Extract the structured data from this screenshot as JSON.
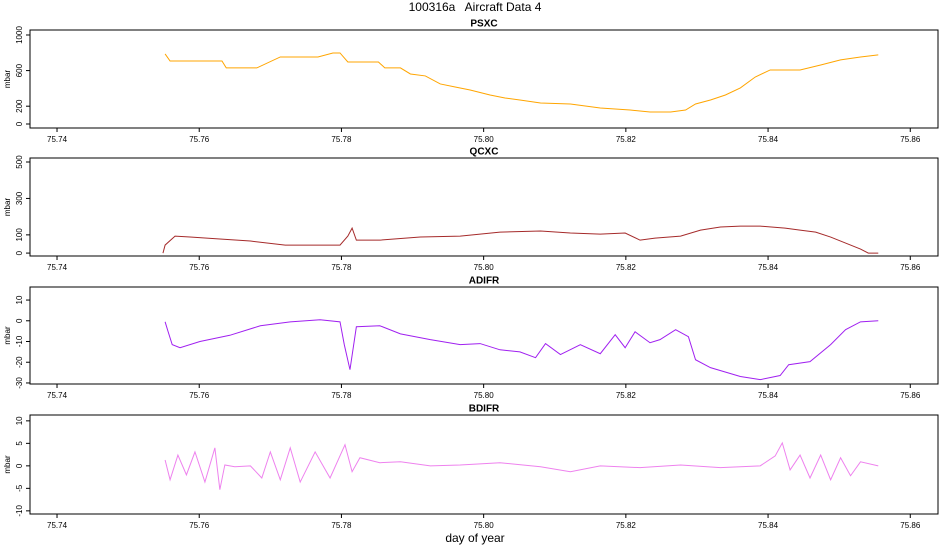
{
  "title": "100316a   Aircraft Data 4",
  "xlabel": "day of year",
  "chart_data": [
    {
      "type": "line",
      "title": "PSXC",
      "ylabel": "mbar",
      "color": "#FFA500",
      "xlim": [
        75.7362,
        75.8639
      ],
      "xticks": [
        75.74,
        75.76,
        75.78,
        {
          "value": 75.8,
          "label": "75.80"
        },
        75.82,
        75.84,
        75.86
      ],
      "ylim": [
        -45,
        1056
      ],
      "yticks": [
        0,
        200,
        600,
        1000
      ],
      "x": [
        75.7552,
        75.7559,
        75.7632,
        75.7638,
        75.7681,
        75.7714,
        75.7767,
        75.7788,
        75.7798,
        75.7809,
        75.7852,
        75.7861,
        75.7883,
        75.7897,
        75.7918,
        75.7939,
        75.796,
        75.7981,
        75.8009,
        75.803,
        75.8051,
        75.808,
        75.8122,
        75.8164,
        75.8206,
        75.8234,
        75.8263,
        75.8284,
        75.8298,
        75.8319,
        75.834,
        75.8361,
        75.8382,
        75.8403,
        75.8445,
        75.8474,
        75.8502,
        75.853,
        75.8555
      ],
      "values": [
        787,
        708,
        708,
        630,
        630,
        753,
        753,
        798,
        798,
        697,
        697,
        630,
        630,
        562,
        540,
        450,
        416,
        382,
        326,
        292,
        270,
        236,
        225,
        180,
        157,
        135,
        135,
        157,
        225,
        270,
        326,
        405,
        528,
        607,
        607,
        663,
        720,
        753,
        776
      ]
    },
    {
      "type": "line",
      "title": "QCXC",
      "ylabel": "mbar",
      "color": "#A52A2A",
      "xlim": [
        75.7362,
        75.8639
      ],
      "xticks": [
        75.74,
        75.76,
        75.78,
        {
          "value": 75.8,
          "label": "75.80"
        },
        75.82,
        75.84,
        75.86
      ],
      "ylim": [
        -16,
        522
      ],
      "yticks": [
        0,
        100,
        300,
        500
      ],
      "x": [
        75.7549,
        75.7552,
        75.7566,
        75.7587,
        75.7629,
        75.7672,
        75.7721,
        75.7798,
        75.7809,
        75.7815,
        75.7821,
        75.7854,
        75.7911,
        75.7967,
        75.7995,
        75.8023,
        75.808,
        75.8122,
        75.8164,
        75.8199,
        75.822,
        75.8241,
        75.8277,
        75.8305,
        75.8333,
        75.8361,
        75.8389,
        75.8424,
        75.8445,
        75.8467,
        75.8488,
        75.8509,
        75.853,
        75.8541,
        75.8555
      ],
      "values": [
        0,
        44,
        93,
        88,
        77,
        66,
        44,
        44,
        93,
        137,
        71,
        71,
        88,
        93,
        104,
        115,
        121,
        110,
        104,
        110,
        71,
        82,
        93,
        126,
        143,
        148,
        148,
        137,
        126,
        115,
        88,
        55,
        22,
        0,
        0
      ]
    },
    {
      "type": "line",
      "title": "ADIFR",
      "ylabel": "mbar",
      "color": "#A020F0",
      "xlim": [
        75.7362,
        75.8639
      ],
      "xticks": [
        75.74,
        75.76,
        75.78,
        {
          "value": 75.8,
          "label": "75.80"
        },
        75.82,
        75.84,
        75.86
      ],
      "ylim": [
        -30.5,
        16.3
      ],
      "yticks": [
        -30,
        -20,
        -10,
        0,
        10
      ],
      "x": [
        75.7552,
        75.7556,
        75.7562,
        75.7573,
        75.7601,
        75.7643,
        75.7686,
        75.7728,
        75.777,
        75.7798,
        75.7804,
        75.7812,
        75.7821,
        75.7854,
        75.7883,
        75.7925,
        75.7967,
        75.7995,
        75.8023,
        75.8051,
        75.8073,
        75.8087,
        75.8108,
        75.8136,
        75.8164,
        75.8185,
        75.8199,
        75.8213,
        75.8234,
        75.8248,
        75.827,
        75.8288,
        75.8298,
        75.8319,
        75.8361,
        75.8389,
        75.8417,
        75.8429,
        75.8459,
        75.8488,
        75.8509,
        75.853,
        75.8555
      ],
      "values": [
        -0.5,
        -5,
        -11.5,
        -13,
        -10,
        -7,
        -2.4,
        -0.5,
        0.5,
        -0.5,
        -11.5,
        -23.6,
        -2.9,
        -2.4,
        -6.3,
        -9.1,
        -11.5,
        -11,
        -14,
        -15,
        -17.8,
        -11,
        -16.3,
        -11.5,
        -15.9,
        -6.7,
        -13,
        -5.3,
        -10.6,
        -9.1,
        -4.3,
        -7.7,
        -18.8,
        -22.6,
        -26.9,
        -28.4,
        -26.4,
        -21.2,
        -19.7,
        -11.5,
        -4.3,
        -0.5,
        0
      ]
    },
    {
      "type": "line",
      "title": "BDIFR",
      "ylabel": "mbar",
      "color": "#EE82EE",
      "xlim": [
        75.7362,
        75.8639
      ],
      "xticks": [
        75.74,
        75.76,
        75.78,
        {
          "value": 75.8,
          "label": "75.80"
        },
        75.82,
        75.84,
        75.86
      ],
      "ylim": [
        -10.7,
        11.3
      ],
      "yticks": [
        -10,
        -5,
        0,
        5,
        10
      ],
      "x": [
        75.7552,
        75.7559,
        75.757,
        75.7582,
        75.7594,
        75.7608,
        75.7622,
        75.7629,
        75.7636,
        75.765,
        75.7672,
        75.7688,
        75.77,
        75.7714,
        75.7728,
        75.7742,
        75.7763,
        75.7784,
        75.7805,
        75.7815,
        75.7826,
        75.7854,
        75.7883,
        75.7925,
        75.7967,
        75.8023,
        75.808,
        75.8122,
        75.8164,
        75.822,
        75.8277,
        75.8333,
        75.8389,
        75.841,
        75.842,
        75.8431,
        75.8445,
        75.8459,
        75.8474,
        75.8488,
        75.8502,
        75.8516,
        75.853,
        75.8555
      ],
      "values": [
        1.3,
        -3.1,
        2.4,
        -2,
        3.1,
        -3.6,
        4,
        -5.3,
        0.2,
        -0.2,
        0,
        -2.7,
        3.1,
        -3.1,
        4,
        -3.6,
        3.1,
        -2.7,
        4.7,
        -1.3,
        1.8,
        0.7,
        0.9,
        0,
        0.2,
        0.7,
        -0.2,
        -1.3,
        0,
        -0.4,
        0.2,
        -0.4,
        0,
        2.2,
        5.1,
        -0.9,
        2.4,
        -2.7,
        2.4,
        -3.1,
        1.8,
        -2.2,
        0.9,
        0
      ]
    }
  ]
}
